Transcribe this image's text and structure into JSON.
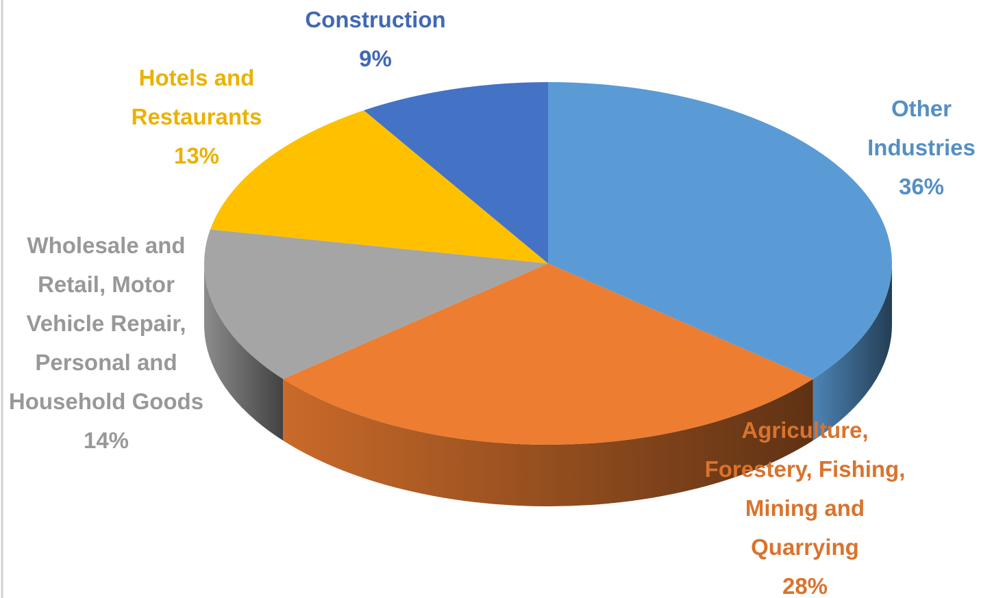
{
  "chart_data": {
    "type": "pie",
    "categories": [
      "Other Industries",
      "Agriculture, Forestery, Fishing, Mining and Quarrying",
      "Wholesale and Retail, Motor Vehicle Repair, Personal and Household Goods",
      "Hotels and Restaurants",
      "Construction"
    ],
    "values": [
      36,
      28,
      14,
      13,
      9
    ],
    "value_labels": [
      "36%",
      "28%",
      "14%",
      "13%",
      "9%"
    ],
    "colors": [
      "#5b9bd5",
      "#ed7d31",
      "#a5a5a5",
      "#ffc000",
      "#4472c4"
    ]
  }
}
